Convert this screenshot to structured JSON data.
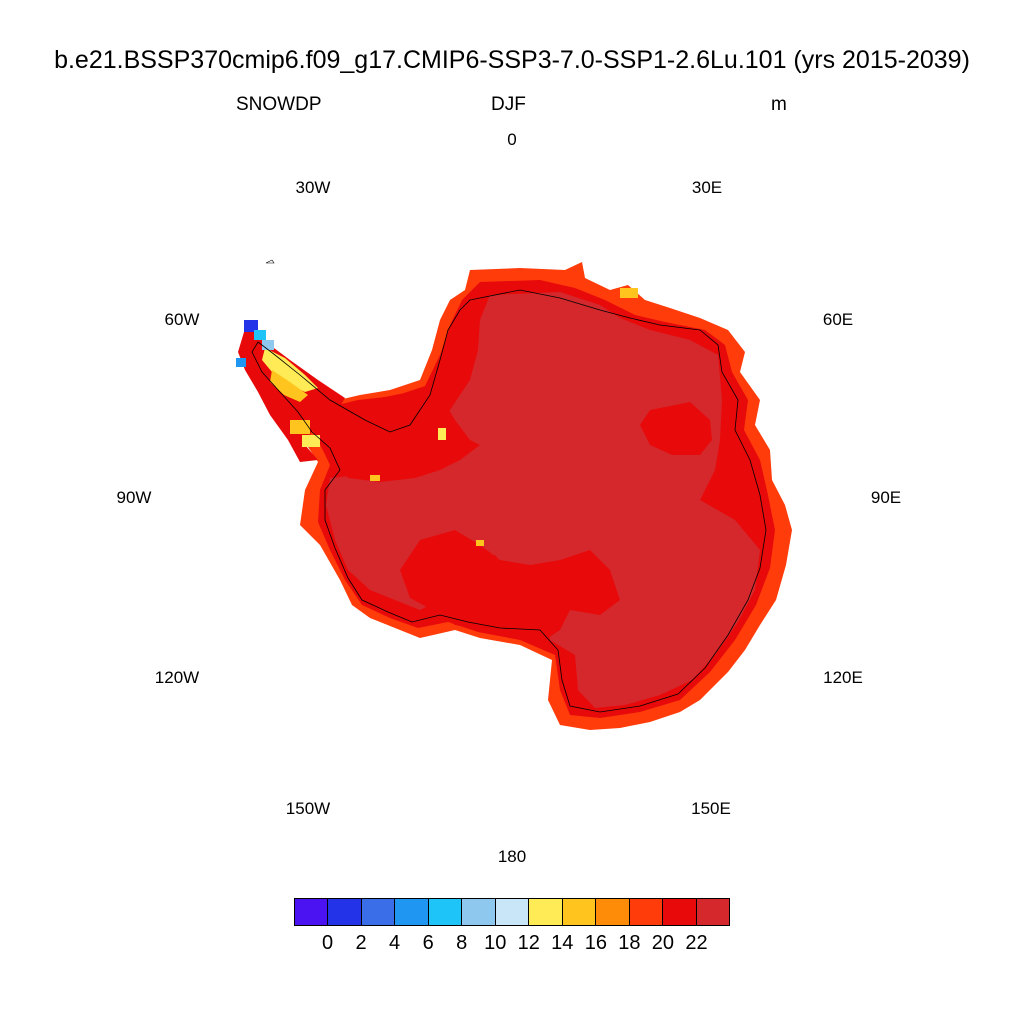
{
  "title": "b.e21.BSSP370cmip6.f09_g17.CMIP6-SSP3-7.0-SSP1-2.6Lu.101 (yrs 2015-2039)",
  "variable": "SNOWDP",
  "season": "DJF",
  "units": "m",
  "longitude_labels": [
    "0",
    "30E",
    "60E",
    "90E",
    "120E",
    "150E",
    "180",
    "150W",
    "120W",
    "90W",
    "60W",
    "30W"
  ],
  "colorbar": {
    "colors": [
      "#4b12f2",
      "#2233e8",
      "#3a6ee8",
      "#1e96f2",
      "#1ec4f7",
      "#8ec8ee",
      "#c8e6f8",
      "#ffeb55",
      "#ffc51e",
      "#ff8c08",
      "#ff3c0a",
      "#e80a0a",
      "#d4282d"
    ],
    "labels": [
      "0",
      "2",
      "4",
      "6",
      "8",
      "10",
      "12",
      "14",
      "16",
      "18",
      "20",
      "22"
    ]
  },
  "map": {
    "projection": "south polar stereographic",
    "region": "Antarctica",
    "dominant_color": "#d4282d",
    "colors": {
      "interior": "#d4282d",
      "coast_band": "#e80a0a",
      "edge": "#ff3c0a",
      "peninsula_yellow": "#ffeb55",
      "peninsula_orange": "#ffc51e",
      "peninsula_blue": "#2233e8",
      "peninsula_lightblue": "#8ec8ee"
    }
  }
}
